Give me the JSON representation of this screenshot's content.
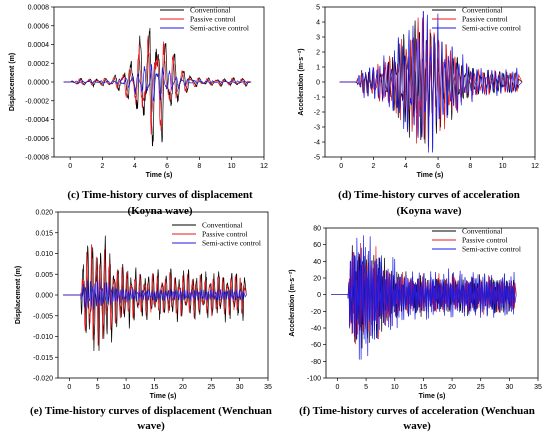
{
  "chart_data": [
    {
      "type": "line",
      "caption_lines": [
        "(c) Time-history curves of displacement",
        "(Koyna wave)"
      ],
      "xlabel": "Time (s)",
      "ylabel": "Displacement (m)",
      "xlim": [
        -1,
        12
      ],
      "ylim": [
        -0.0008,
        0.0008
      ],
      "xticks": [
        0,
        2,
        4,
        6,
        8,
        10,
        12
      ],
      "xtick_labels": [
        "0",
        "2",
        "4",
        "6",
        "8",
        "10",
        "12"
      ],
      "yticks": [
        -0.0008,
        -0.0006,
        -0.0004,
        -0.0002,
        0,
        0.0002,
        0.0004,
        0.0006,
        0.0008
      ],
      "ytick_labels": [
        "-0.0008",
        "-0.0006",
        "-0.0004",
        "-0.0002",
        "0.0000",
        "0.0002",
        "0.0004",
        "0.0006",
        "0.0008"
      ],
      "signal": {
        "start": 0,
        "end": 11,
        "envCenter": 5.2,
        "envWidth": 1.4,
        "baseFrac": 0.06
      },
      "series": [
        {
          "name": "Conventional",
          "color": "#000000",
          "peak": 0.00068,
          "freq": 1.9,
          "phase": 0.0,
          "seed": 11
        },
        {
          "name": "Passive control",
          "color": "#e8141b",
          "peak": 0.00056,
          "freq": 1.9,
          "phase": 0.9,
          "seed": 23
        },
        {
          "name": "Semi-active control",
          "color": "#1a1ae6",
          "peak": 0.0002,
          "freq": 2.6,
          "phase": 1.7,
          "seed": 37
        }
      ]
    },
    {
      "type": "line",
      "caption_lines": [
        "(d) Time-history curves of acceleration",
        "(Koyna wave)"
      ],
      "xlabel": "Time (s)",
      "ylabel": "Acceleration (m·s⁻²)",
      "xlim": [
        -1,
        12
      ],
      "ylim": [
        -5,
        5
      ],
      "xticks": [
        0,
        2,
        4,
        6,
        8,
        10,
        12
      ],
      "xtick_labels": [
        "0",
        "2",
        "4",
        "6",
        "8",
        "10",
        "12"
      ],
      "yticks": [
        -5,
        -4,
        -3,
        -2,
        -1,
        0,
        1,
        2,
        3,
        4,
        5
      ],
      "ytick_labels": [
        "-5",
        "-4",
        "-3",
        "-2",
        "-1",
        "0",
        "1",
        "2",
        "3",
        "4",
        "5"
      ],
      "signal": {
        "start": 0.9,
        "end": 11,
        "envCenter": 5.1,
        "envWidth": 1.9,
        "baseFrac": 0.18
      },
      "series": [
        {
          "name": "Conventional",
          "color": "#000000",
          "peak": 4.1,
          "freq": 4.2,
          "phase": 0.0,
          "seed": 5
        },
        {
          "name": "Passive control",
          "color": "#e8141b",
          "peak": 4.3,
          "freq": 4.0,
          "phase": 1.1,
          "seed": 17
        },
        {
          "name": "Semi-active control",
          "color": "#1a1ae6",
          "peak": 4.7,
          "freq": 4.5,
          "phase": 2.0,
          "seed": 29
        }
      ]
    },
    {
      "type": "line",
      "caption_lines": [
        "(e) Time-history curves of displacement (Wenchuan",
        "wave)"
      ],
      "xlabel": "Time (s)",
      "ylabel": "Displacement (m)",
      "xlim": [
        -2,
        35
      ],
      "ylim": [
        -0.02,
        0.02
      ],
      "xticks": [
        0,
        5,
        10,
        15,
        20,
        25,
        30,
        35
      ],
      "xtick_labels": [
        "0",
        "5",
        "10",
        "15",
        "20",
        "25",
        "30",
        "35"
      ],
      "yticks": [
        -0.02,
        -0.015,
        -0.01,
        -0.005,
        0,
        0.005,
        0.01,
        0.015,
        0.02
      ],
      "ytick_labels": [
        "-0.020",
        "-0.015",
        "-0.010",
        "-0.005",
        "0.000",
        "0.005",
        "0.010",
        "0.015",
        "0.020"
      ],
      "signal": {
        "start": 2,
        "end": 31,
        "envCenter": 4.5,
        "envWidth": 4.0,
        "baseFrac": 0.4
      },
      "series": [
        {
          "name": "Conventional",
          "color": "#000000",
          "peak": 0.0148,
          "freq": 1.3,
          "phase": 0.0,
          "seed": 3
        },
        {
          "name": "Passive control",
          "color": "#e8141b",
          "peak": 0.0122,
          "freq": 1.3,
          "phase": 1.2,
          "seed": 19
        },
        {
          "name": "Semi-active control",
          "color": "#1a1ae6",
          "peak": 0.0035,
          "freq": 2.4,
          "phase": 2.3,
          "seed": 41
        }
      ]
    },
    {
      "type": "line",
      "caption_lines": [
        "(f) Time-history curves of acceleration (Wenchuan",
        "wave)"
      ],
      "xlabel": "Time (s)",
      "ylabel": "Acceleration (m·s⁻²)",
      "xlim": [
        -2,
        35
      ],
      "ylim": [
        -100,
        80
      ],
      "xticks": [
        0,
        5,
        10,
        15,
        20,
        25,
        30,
        35
      ],
      "xtick_labels": [
        "0",
        "5",
        "10",
        "15",
        "20",
        "25",
        "30",
        "35"
      ],
      "yticks": [
        -100,
        -80,
        -60,
        -40,
        -20,
        0,
        20,
        40,
        60,
        80
      ],
      "ytick_labels": [
        "-100",
        "-80",
        "-60",
        "-40",
        "-20",
        "0",
        "20",
        "40",
        "60",
        "80"
      ],
      "signal": {
        "start": 1.8,
        "end": 31,
        "envCenter": 4.3,
        "envWidth": 4.5,
        "baseFrac": 0.35
      },
      "series": [
        {
          "name": "Conventional",
          "color": "#000000",
          "peak": 66,
          "freq": 3.2,
          "phase": 0.0,
          "seed": 7
        },
        {
          "name": "Passive control",
          "color": "#e8141b",
          "peak": 62,
          "freq": 3.0,
          "phase": 1.0,
          "seed": 13
        },
        {
          "name": "Semi-active control",
          "color": "#1a1ae6",
          "peak": 78,
          "freq": 3.5,
          "phase": 2.1,
          "seed": 31
        }
      ]
    }
  ]
}
